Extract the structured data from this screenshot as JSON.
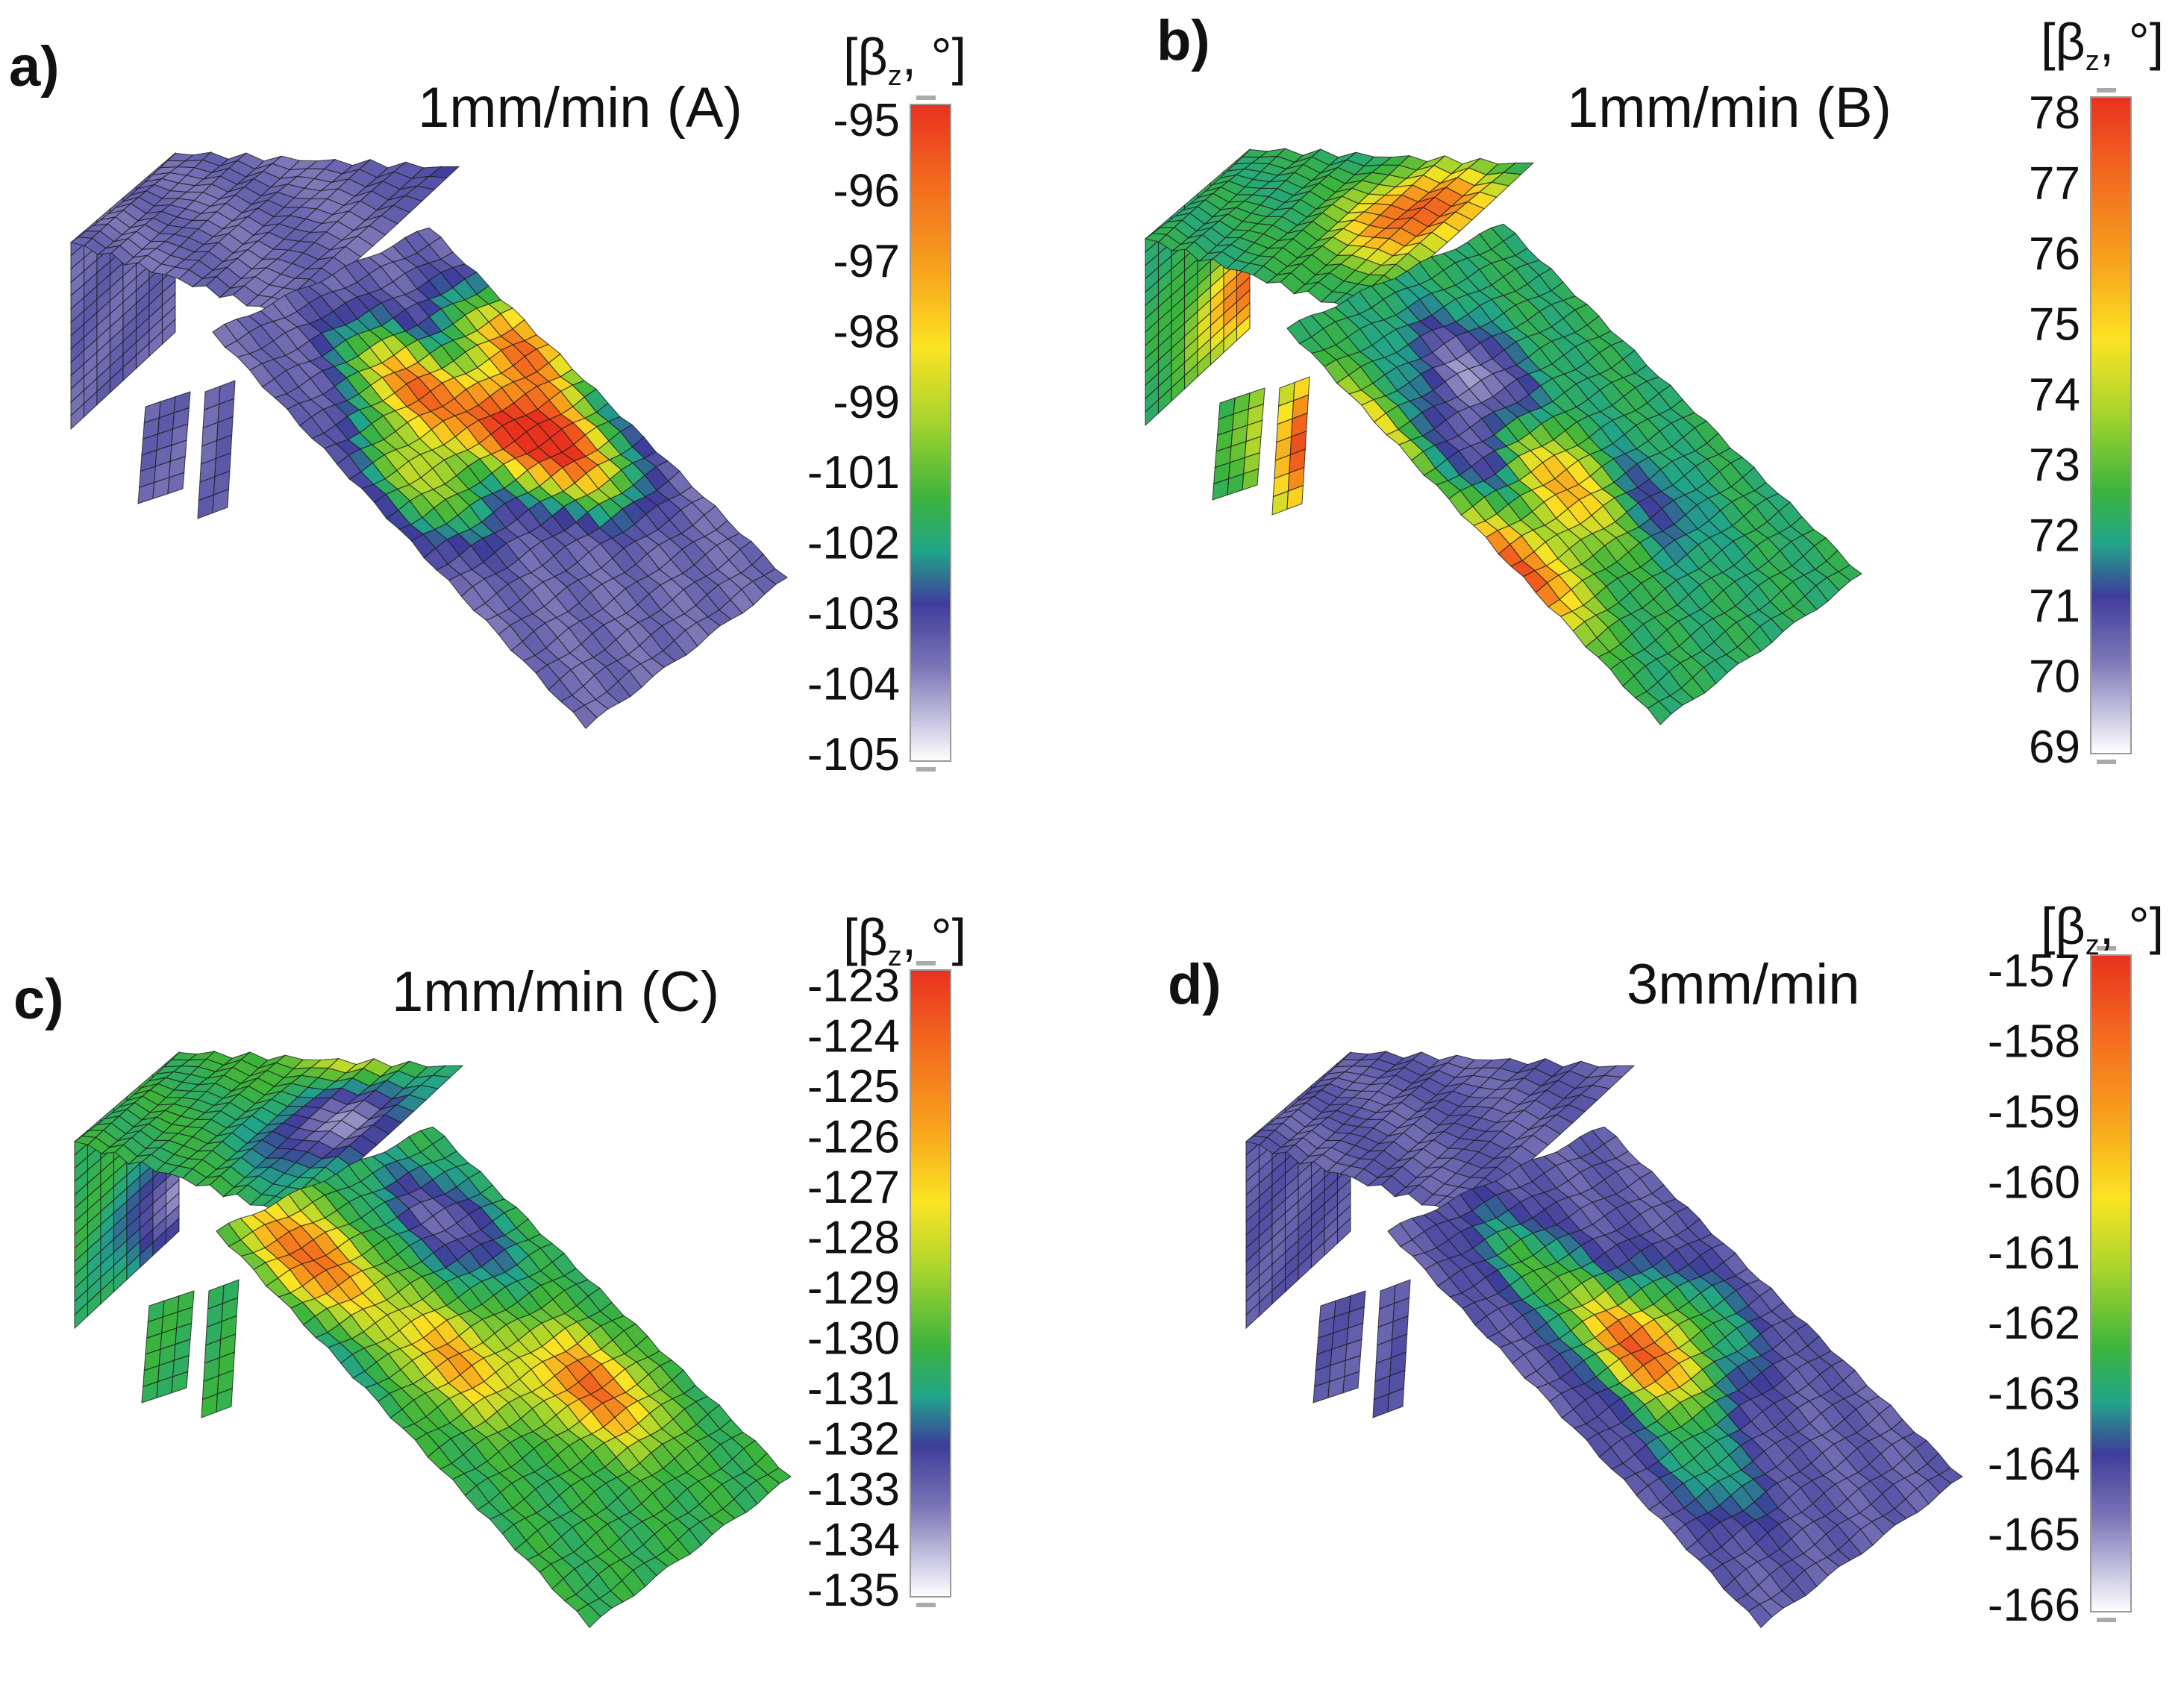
{
  "chart_data": [
    {
      "type": "surface",
      "panel_label": "a)",
      "title": "1mm/min (A)",
      "colorbar": {
        "label_open": "[β",
        "label_sub": "z",
        "label_close": ", °]",
        "range": [
          -105,
          -95
        ],
        "ticks": [
          "-95",
          "-96",
          "-97",
          "-98",
          "-99",
          "-101",
          "-102",
          "-103",
          "-104",
          "-105"
        ]
      },
      "dominant_level": 0.16,
      "hotspots": [
        {
          "u": 0.62,
          "v": 0.42,
          "level": 0.8
        },
        {
          "u": 0.72,
          "v": 0.55,
          "level": 0.7
        },
        {
          "u": 0.82,
          "v": 0.62,
          "level": 0.9
        },
        {
          "u": 0.45,
          "v": 0.55,
          "level": 0.55
        },
        {
          "u": 0.93,
          "v": 0.45,
          "level": 0.85
        }
      ]
    },
    {
      "type": "surface",
      "panel_label": "b)",
      "title": "1mm/min (B)",
      "colorbar": {
        "label_open": "[β",
        "label_sub": "z",
        "label_close": ", °]",
        "range": [
          69,
          78
        ],
        "ticks": [
          "78",
          "77",
          "76",
          "75",
          "74",
          "73",
          "72",
          "71",
          "70",
          "69"
        ]
      },
      "dominant_level": 0.36,
      "hotspots": [
        {
          "u": 0.22,
          "v": 0.4,
          "level": 0.93
        },
        {
          "u": 0.3,
          "v": 0.7,
          "level": 0.95
        },
        {
          "u": 0.45,
          "v": 0.5,
          "level": 0.15
        },
        {
          "u": 0.62,
          "v": 0.4,
          "level": 0.1
        },
        {
          "u": 0.58,
          "v": 0.62,
          "level": 0.8
        },
        {
          "u": 0.7,
          "v": 0.7,
          "level": 0.2
        }
      ]
    },
    {
      "type": "surface",
      "panel_label": "c)",
      "title": "1mm/min (C)",
      "colorbar": {
        "label_open": "[β",
        "label_sub": "z",
        "label_close": ", °]",
        "range": [
          -135,
          -123
        ],
        "ticks": [
          "-123",
          "-124",
          "-125",
          "-126",
          "-127",
          "-128",
          "-129",
          "-130",
          "-131",
          "-132",
          "-133",
          "-134",
          "-135"
        ]
      },
      "dominant_level": 0.38,
      "hotspots": [
        {
          "u": 0.45,
          "v": 0.3,
          "level": 0.9
        },
        {
          "u": 0.55,
          "v": 0.55,
          "level": 0.75
        },
        {
          "u": 0.78,
          "v": 0.7,
          "level": 0.88
        },
        {
          "u": 0.82,
          "v": 0.35,
          "level": 0.15
        },
        {
          "u": 0.2,
          "v": 0.4,
          "level": 0.12
        }
      ]
    },
    {
      "type": "surface",
      "panel_label": "d)",
      "title": "3mm/min",
      "colorbar": {
        "label_open": "[β",
        "label_sub": "z",
        "label_close": ", °]",
        "range": [
          -166,
          -157
        ],
        "ticks": [
          "-157",
          "-158",
          "-159",
          "-160",
          "-161",
          "-162",
          "-163",
          "-164",
          "-165",
          "-166"
        ]
      },
      "dominant_level": 0.18,
      "hotspots": [
        {
          "u": 0.6,
          "v": 0.55,
          "level": 0.92
        },
        {
          "u": 0.55,
          "v": 0.35,
          "level": 0.4
        },
        {
          "u": 0.8,
          "v": 0.55,
          "level": 0.38
        },
        {
          "u": 0.5,
          "v": 0.75,
          "level": 0.35
        }
      ]
    }
  ]
}
